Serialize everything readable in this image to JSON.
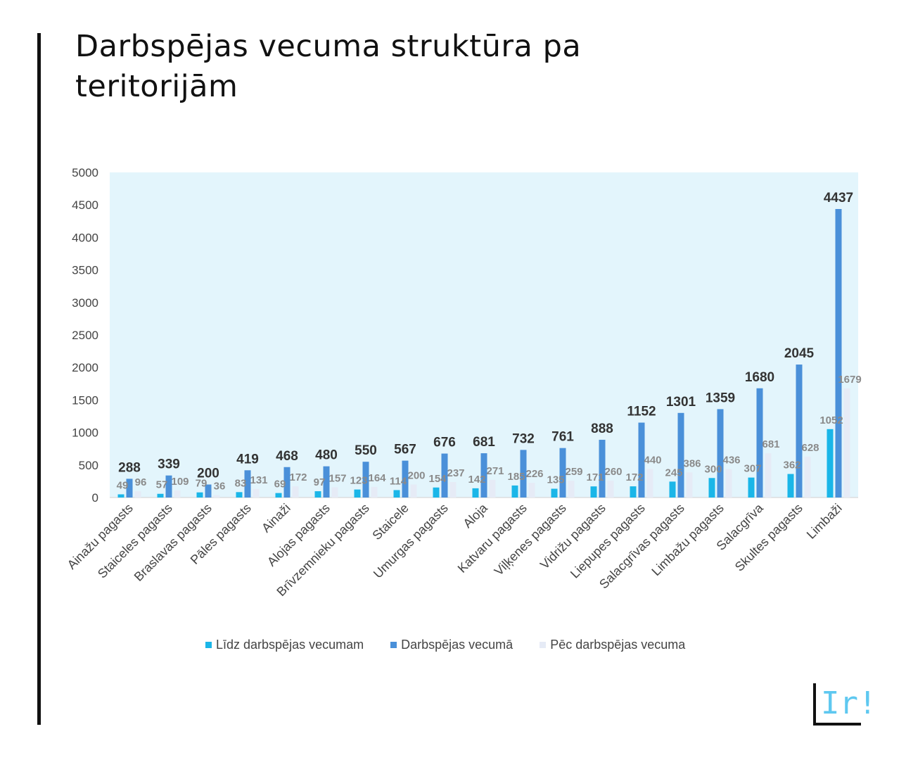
{
  "page": {
    "title": "Darbspējas vecuma struktūra pa teritorijām"
  },
  "logo": {
    "text": "Ir!"
  },
  "colors": {
    "series1": "#1ab6e8",
    "series2": "#4a90d9",
    "series3": "#e6ebf6",
    "plot_background": "#e3f5fc",
    "accent": "#5ec8f0"
  },
  "chart_data": {
    "type": "bar",
    "title": "",
    "xlabel": "",
    "ylabel": "",
    "ylim": [
      0,
      5000
    ],
    "yticks": [
      0,
      500,
      1000,
      1500,
      2000,
      2500,
      3000,
      3500,
      4000,
      4500,
      5000
    ],
    "grid": false,
    "legend_position": "bottom",
    "categories": [
      "Ainažu pagasts",
      "Staiceles pagasts",
      "Braslavas pagasts",
      "Pāles pagasts",
      "Ainaži",
      "Alojas pagasts",
      "Brīvzemnieku pagasts",
      "Staicele",
      "Umurgas pagasts",
      "Aloja",
      "Katvaru pagasts",
      "Viļķenes pagasts",
      "Vidrižu pagasts",
      "Liepupes pagasts",
      "Salacgrīvas pagasts",
      "Limbažu pagasts",
      "Salacgrīva",
      "Skultes pagasts",
      "Limbaži"
    ],
    "series": [
      {
        "name": "Līdz darbspējas vecumam",
        "values": [
          49,
          57,
          79,
          83,
          69,
          97,
          123,
          114,
          154,
          142,
          185,
          135,
          171,
          172,
          245,
          300,
          307,
          362,
          1052
        ]
      },
      {
        "name": "Darbspējas vecumā",
        "values": [
          288,
          339,
          200,
          419,
          468,
          480,
          550,
          567,
          676,
          681,
          732,
          761,
          888,
          1152,
          1301,
          1359,
          1680,
          2045,
          4437
        ]
      },
      {
        "name": "Pēc darbspējas vecuma",
        "values": [
          96,
          109,
          36,
          131,
          172,
          157,
          164,
          200,
          237,
          271,
          226,
          259,
          260,
          440,
          386,
          436,
          681,
          628,
          1679
        ]
      }
    ]
  }
}
